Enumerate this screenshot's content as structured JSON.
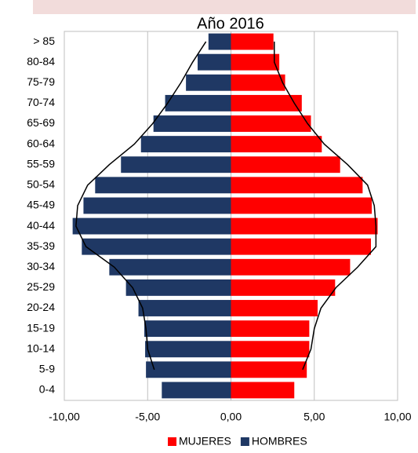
{
  "chart_data": {
    "type": "pyramid",
    "title": "Año 2016",
    "categories": [
      "> 85",
      "80-84",
      "75-79",
      "70-74",
      "65-69",
      "60-64",
      "55-59",
      "50-54",
      "45-49",
      "40-44",
      "35-39",
      "30-34",
      "25-29",
      "20-24",
      "15-19",
      "10-14",
      "5-9",
      "0-4"
    ],
    "series": [
      {
        "name": "MUJERES",
        "color": "#ff0000",
        "values": [
          2.55,
          2.9,
          3.25,
          4.25,
          4.8,
          5.45,
          6.55,
          7.9,
          8.45,
          8.8,
          8.4,
          7.15,
          6.25,
          5.2,
          4.7,
          4.7,
          4.55,
          3.8
        ]
      },
      {
        "name": "HOMBRES",
        "color": "#1f3864",
        "values": [
          -1.35,
          -2.0,
          -2.7,
          -3.95,
          -4.65,
          -5.4,
          -6.6,
          -8.15,
          -8.85,
          -9.5,
          -8.95,
          -7.3,
          -6.3,
          -5.55,
          -5.2,
          -5.15,
          -5.1,
          -4.15
        ]
      }
    ],
    "lines": [
      {
        "color": "#000000",
        "values": [
          2.6,
          2.6,
          3.1,
          3.8,
          4.6,
          5.6,
          7.0,
          8.2,
          8.6,
          8.7,
          8.7,
          7.6,
          6.3,
          5.4,
          5.0,
          4.8,
          4.3,
          null
        ]
      },
      {
        "color": "#000000",
        "values": [
          -1.5,
          -2.3,
          -3.0,
          -3.8,
          -4.7,
          -5.8,
          -7.3,
          -8.6,
          -9.2,
          -9.3,
          -8.7,
          -7.0,
          -5.9,
          -5.3,
          -5.1,
          -5.0,
          -4.6,
          null
        ]
      }
    ],
    "xlim": [
      -10,
      10
    ],
    "xticks": [
      {
        "value": -10,
        "label": "-10,00"
      },
      {
        "value": -5,
        "label": "-5,00"
      },
      {
        "value": 0,
        "label": "0,00"
      },
      {
        "value": 5,
        "label": "5,00"
      },
      {
        "value": 10,
        "label": "10,00"
      }
    ],
    "grid": true,
    "legend": "bottom"
  }
}
